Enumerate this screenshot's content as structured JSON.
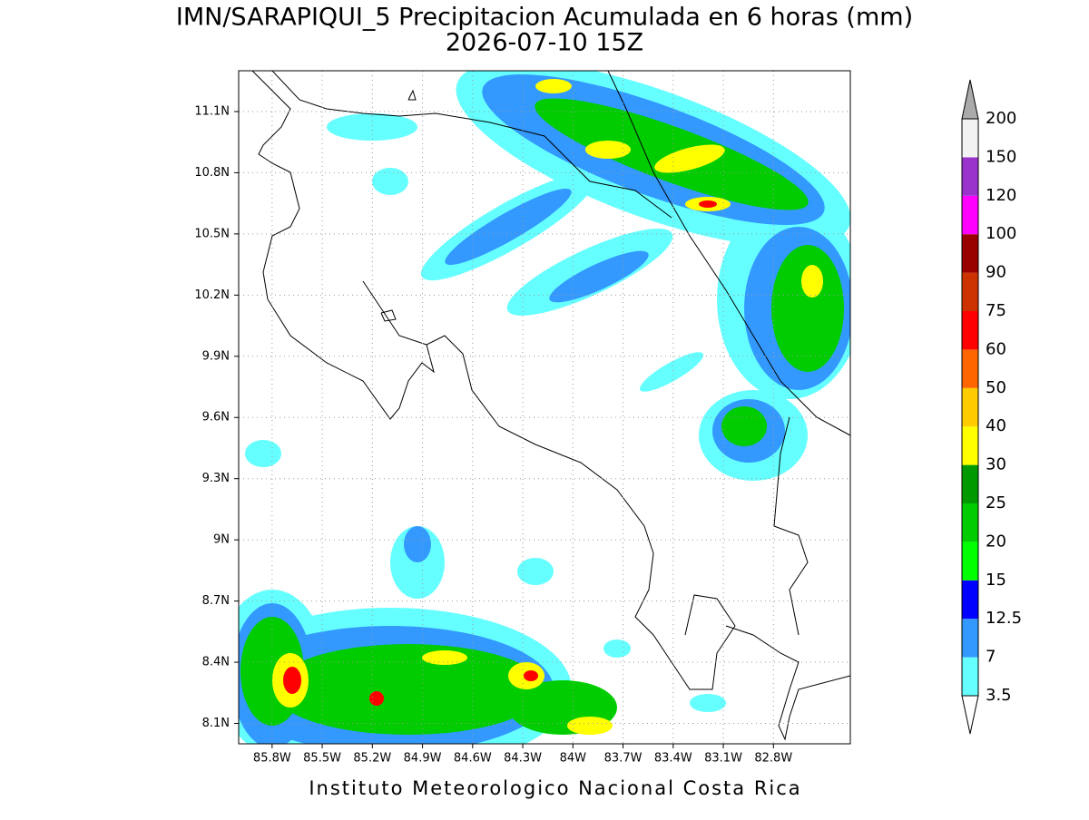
{
  "title": [
    "IMN/SARAPIQUI_5 Precipitacion Acumulada en 6 horas (mm)",
    "2026-07-10 15Z"
  ],
  "map": {
    "latlim": [
      8.0,
      11.3
    ],
    "lonlim": [
      -86.0,
      -82.34
    ],
    "lat_ticks": [
      {
        "value": 11.1,
        "label": "11.1N"
      },
      {
        "value": 10.8,
        "label": "10.8N"
      },
      {
        "value": 10.5,
        "label": "10.5N"
      },
      {
        "value": 10.2,
        "label": "10.2N"
      },
      {
        "value": 9.9,
        "label": "9.9N"
      },
      {
        "value": 9.6,
        "label": "9.6N"
      },
      {
        "value": 9.3,
        "label": "9.3N"
      },
      {
        "value": 9,
        "label": "9N"
      },
      {
        "value": 8.7,
        "label": "8.7N"
      },
      {
        "value": 8.4,
        "label": "8.4N"
      },
      {
        "value": 8.1,
        "label": "8.1N"
      }
    ],
    "lon_ticks": [
      {
        "value": -85.8,
        "label": "85.8W"
      },
      {
        "value": -85.5,
        "label": "85.5W"
      },
      {
        "value": -85.2,
        "label": "85.2W"
      },
      {
        "value": -84.9,
        "label": "84.9W"
      },
      {
        "value": -84.6,
        "label": "84.6W"
      },
      {
        "value": -84.3,
        "label": "84.3W"
      },
      {
        "value": -84,
        "label": "84W"
      },
      {
        "value": -83.7,
        "label": "83.7W"
      },
      {
        "value": -83.4,
        "label": "83.4W"
      },
      {
        "value": -83.1,
        "label": "83.1W"
      },
      {
        "value": -82.8,
        "label": "82.8W"
      }
    ]
  },
  "colorbar": {
    "levels": [
      "3.5",
      "7",
      "12.5",
      "15",
      "20",
      "25",
      "30",
      "40",
      "50",
      "60",
      "75",
      "90",
      "100",
      "120",
      "150",
      "200"
    ],
    "colors": [
      "#ffffff",
      "#66ffff",
      "#3399ff",
      "#0000ff",
      "#00ff00",
      "#00cc00",
      "#009900",
      "#ffff00",
      "#ffcc00",
      "#ff6600",
      "#ff0000",
      "#cc3300",
      "#990000",
      "#ff00ff",
      "#9933cc",
      "#f2f2f2",
      "#aaaaaa"
    ]
  },
  "footer": "Instituto Meteorologico Nacional Costa Rica"
}
